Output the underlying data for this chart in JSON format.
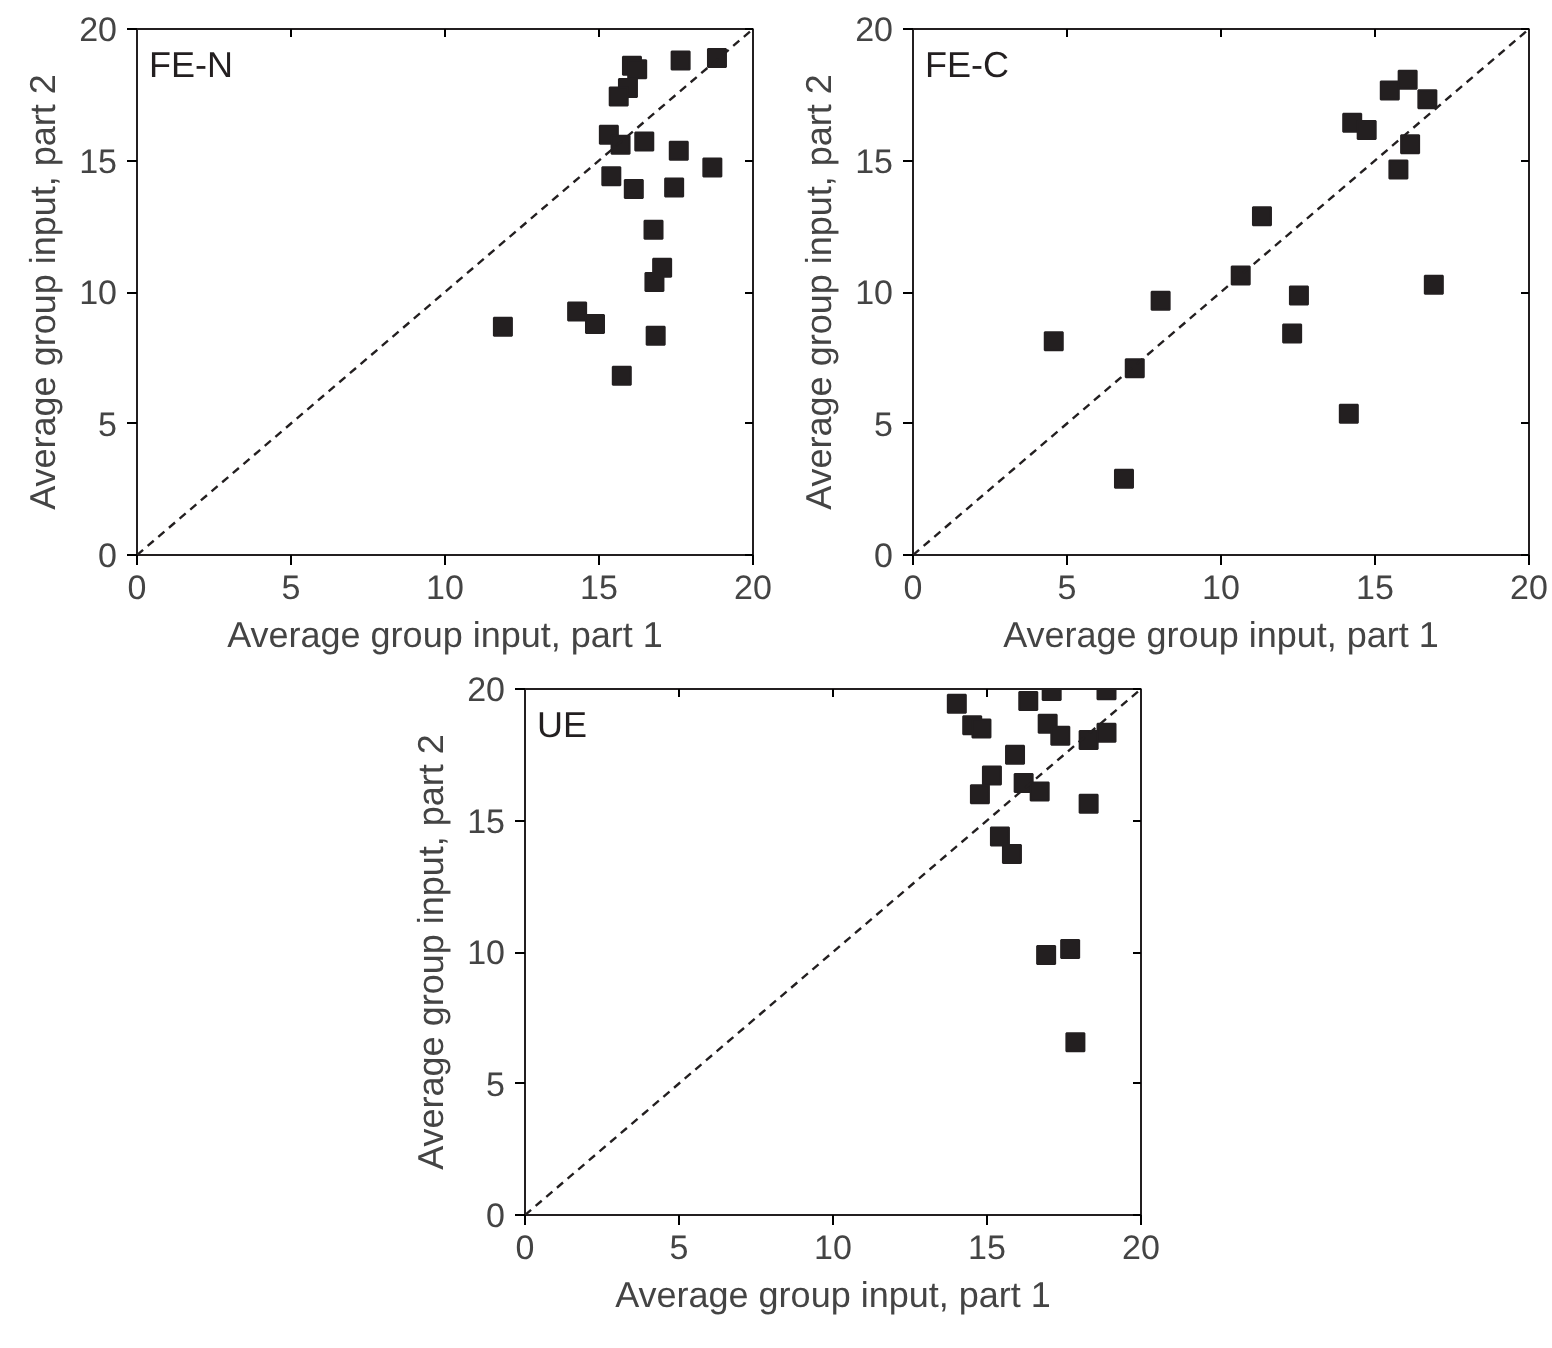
{
  "chart_data": [
    {
      "type": "scatter",
      "title": "FE-N",
      "xlabel": "Average group input, part 1",
      "ylabel": "Average group input, part 2",
      "xlim": [
        0,
        20
      ],
      "ylim": [
        0,
        20
      ],
      "xticks": [
        0,
        5,
        10,
        15,
        20
      ],
      "yticks": [
        0,
        5,
        10,
        15,
        20
      ],
      "grid": false,
      "marker": "square",
      "series": [
        {
          "color": "#231f20",
          "x": [
            16.07,
            16.24,
            17.65,
            18.83,
            15.94,
            15.64,
            15.32,
            15.7,
            16.47,
            17.59,
            18.68,
            15.4,
            16.13,
            17.44,
            16.77,
            17.05,
            16.8,
            14.29,
            14.87,
            11.88,
            16.84,
            15.74
          ],
          "values": [
            18.6,
            18.47,
            18.8,
            18.9,
            17.76,
            17.43,
            15.98,
            15.6,
            15.72,
            15.37,
            14.73,
            14.4,
            13.92,
            13.97,
            12.37,
            10.92,
            10.38,
            9.26,
            8.78,
            8.68,
            8.34,
            6.82
          ]
        },
        {
          "type": "line",
          "line_style": "dashed",
          "marker": "none",
          "color": "#231f20",
          "x": [
            0,
            20
          ],
          "values": [
            0,
            20
          ]
        }
      ]
    },
    {
      "type": "scatter",
      "title": "FE-C",
      "xlabel": "Average group input, part 1",
      "ylabel": "Average group input, part 2",
      "xlim": [
        0,
        20
      ],
      "ylim": [
        0,
        20
      ],
      "xticks": [
        0,
        5,
        10,
        15,
        20
      ],
      "yticks": [
        0,
        5,
        10,
        15,
        20
      ],
      "grid": false,
      "marker": "square",
      "series": [
        {
          "color": "#231f20",
          "x": [
            16.06,
            15.48,
            16.7,
            14.26,
            14.73,
            16.14,
            15.76,
            11.33,
            10.64,
            16.91,
            8.04,
            12.53,
            12.31,
            7.2,
            14.15,
            6.85,
            4.57
          ],
          "values": [
            18.07,
            17.66,
            17.33,
            16.44,
            16.16,
            15.62,
            14.66,
            12.88,
            10.63,
            10.28,
            9.67,
            9.87,
            8.42,
            7.1,
            5.37,
            2.9,
            8.13
          ]
        },
        {
          "type": "line",
          "line_style": "dashed",
          "marker": "none",
          "color": "#231f20",
          "x": [
            0,
            20
          ],
          "values": [
            0,
            20
          ]
        }
      ]
    },
    {
      "type": "scatter",
      "title": "UE",
      "xlabel": "Average group input, part 1",
      "ylabel": "Average group input, part 2",
      "xlim": [
        0,
        20
      ],
      "ylim": [
        0,
        20
      ],
      "xticks": [
        0,
        5,
        10,
        15,
        20
      ],
      "yticks": [
        0,
        5,
        10,
        15,
        20
      ],
      "grid": false,
      "marker": "square",
      "series": [
        {
          "color": "#231f20",
          "x": [
            14.02,
            16.34,
            17.1,
            18.88,
            14.52,
            14.82,
            16.97,
            17.38,
            18.88,
            18.3,
            15.91,
            15.16,
            16.19,
            14.77,
            16.71,
            18.3,
            15.42,
            15.81,
            16.92,
            17.7,
            17.87
          ],
          "values": [
            19.44,
            19.54,
            19.92,
            19.95,
            18.62,
            18.5,
            18.68,
            18.22,
            18.34,
            18.06,
            17.5,
            16.71,
            16.43,
            16.0,
            16.1,
            15.64,
            14.39,
            13.73,
            9.89,
            10.11,
            6.57
          ]
        },
        {
          "type": "line",
          "line_style": "dashed",
          "marker": "none",
          "color": "#231f20",
          "x": [
            0,
            20
          ],
          "values": [
            0,
            20
          ]
        }
      ]
    }
  ]
}
